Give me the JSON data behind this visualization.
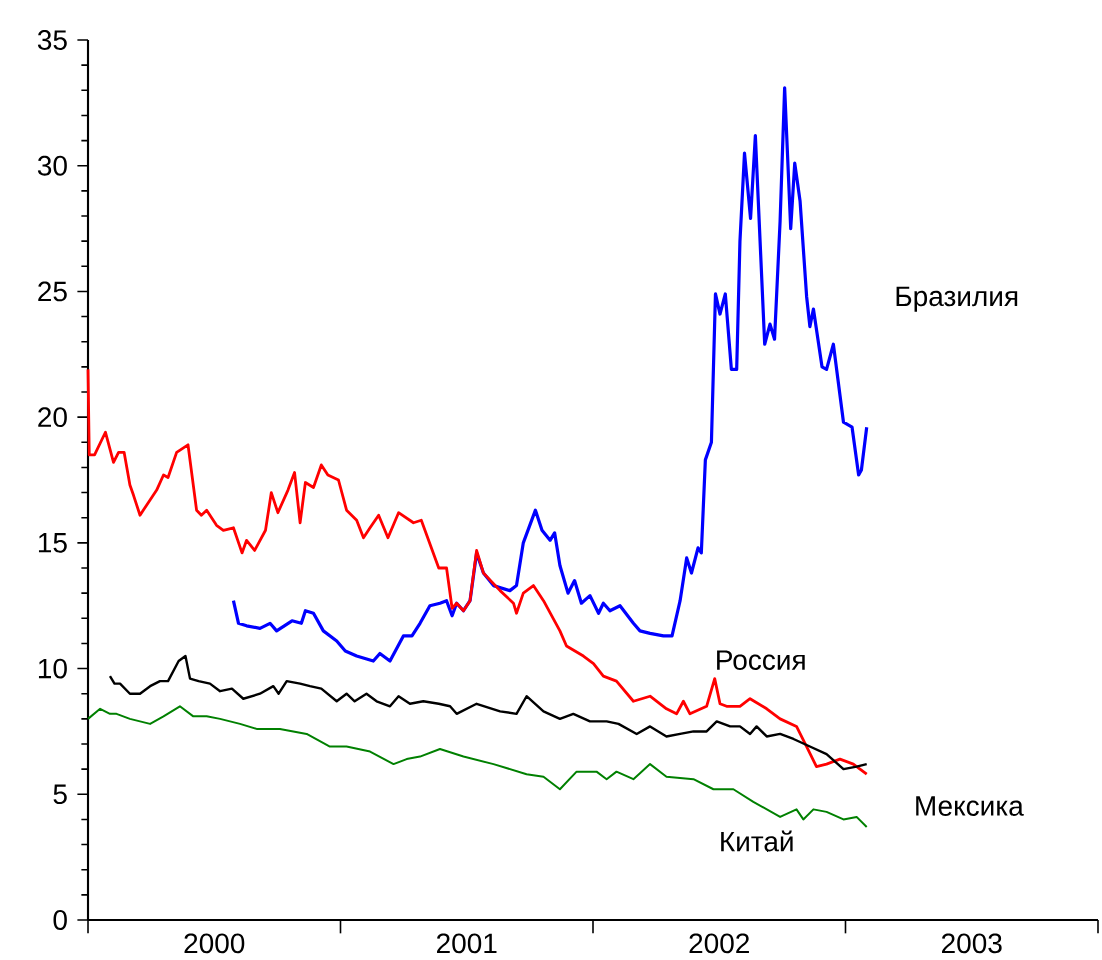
{
  "chart_data": {
    "type": "line",
    "xlim": [
      2000,
      2004
    ],
    "ylim": [
      0,
      35
    ],
    "xticks": [
      {
        "value": 2000,
        "label": null
      },
      {
        "value": 2000.5,
        "label": "2000"
      },
      {
        "value": 2001,
        "label": null
      },
      {
        "value": 2001.5,
        "label": "2001"
      },
      {
        "value": 2002,
        "label": null
      },
      {
        "value": 2002.5,
        "label": "2002"
      },
      {
        "value": 2003,
        "label": null
      },
      {
        "value": 2003.5,
        "label": "2003"
      },
      {
        "value": 2004,
        "label": null
      }
    ],
    "yticks": [
      0,
      5,
      10,
      15,
      20,
      25,
      30,
      35
    ],
    "grid": false,
    "legend": false,
    "marker": "none",
    "line_style": "solid",
    "series": [
      {
        "name": "Бразилия",
        "color": "#0000ff",
        "x": [
          2000.576,
          2000.596,
          2000.628,
          2000.681,
          2000.721,
          2000.747,
          2000.808,
          2000.845,
          2000.861,
          2000.893,
          2000.932,
          2000.985,
          2001.019,
          2001.064,
          2001.13,
          2001.156,
          2001.196,
          2001.249,
          2001.283,
          2001.315,
          2001.354,
          2001.394,
          2001.42,
          2001.442,
          2001.46,
          2001.487,
          2001.513,
          2001.539,
          2001.566,
          2001.606,
          2001.671,
          2001.697,
          2001.724,
          2001.772,
          2001.798,
          2001.83,
          2001.848,
          2001.869,
          2001.901,
          2001.927,
          2001.954,
          2001.988,
          2002.022,
          2002.041,
          2002.067,
          2002.107,
          2002.16,
          2002.186,
          2002.226,
          2002.279,
          2002.313,
          2002.345,
          2002.371,
          2002.39,
          2002.416,
          2002.429,
          2002.445,
          2002.469,
          2002.485,
          2002.503,
          2002.524,
          2002.548,
          2002.569,
          2002.582,
          2002.6,
          2002.624,
          2002.643,
          2002.68,
          2002.701,
          2002.719,
          2002.741,
          2002.759,
          2002.783,
          2002.799,
          2002.82,
          2002.846,
          2002.859,
          2002.873,
          2002.907,
          2002.925,
          2002.952,
          2002.992,
          2003.026,
          2003.052,
          2003.063,
          2003.084
        ],
        "values": [
          12.7,
          11.8,
          11.7,
          11.6,
          11.8,
          11.5,
          11.9,
          11.8,
          12.3,
          12.2,
          11.5,
          11.1,
          10.7,
          10.5,
          10.3,
          10.6,
          10.3,
          11.3,
          11.3,
          11.8,
          12.5,
          12.6,
          12.7,
          12.1,
          12.6,
          12.3,
          12.7,
          14.6,
          13.8,
          13.3,
          13.1,
          13.3,
          15.0,
          16.3,
          15.5,
          15.1,
          15.4,
          14.1,
          13.0,
          13.5,
          12.6,
          12.9,
          12.2,
          12.6,
          12.3,
          12.5,
          11.8,
          11.5,
          11.4,
          11.3,
          11.3,
          12.7,
          14.4,
          13.8,
          14.8,
          14.6,
          18.3,
          19.0,
          24.9,
          24.1,
          24.9,
          21.9,
          21.9,
          27.0,
          30.5,
          27.9,
          31.2,
          22.9,
          23.7,
          23.1,
          27.8,
          33.1,
          27.5,
          30.1,
          28.6,
          24.8,
          23.6,
          24.3,
          22.0,
          21.9,
          22.9,
          19.8,
          19.6,
          17.7,
          17.9,
          19.6
        ]
      },
      {
        "name": "Россия",
        "color": "#ff0000",
        "x": [
          2000.0,
          2000.005,
          2000.026,
          2000.069,
          2000.101,
          2000.121,
          2000.143,
          2000.166,
          2000.18,
          2000.206,
          2000.232,
          2000.272,
          2000.299,
          2000.317,
          2000.351,
          2000.396,
          2000.43,
          2000.449,
          2000.47,
          2000.509,
          2000.536,
          2000.576,
          2000.61,
          2000.628,
          2000.66,
          2000.703,
          2000.726,
          2000.752,
          2000.792,
          2000.818,
          2000.84,
          2000.861,
          2000.893,
          2000.924,
          2000.95,
          2000.992,
          2001.024,
          2001.064,
          2001.091,
          2001.117,
          2001.151,
          2001.188,
          2001.23,
          2001.289,
          2001.32,
          2001.389,
          2001.42,
          2001.442,
          2001.46,
          2001.487,
          2001.513,
          2001.539,
          2001.566,
          2001.632,
          2001.685,
          2001.697,
          2001.724,
          2001.764,
          2001.804,
          2001.869,
          2001.895,
          2001.962,
          2002.002,
          2002.041,
          2002.093,
          2002.16,
          2002.226,
          2002.291,
          2002.331,
          2002.358,
          2002.384,
          2002.45,
          2002.482,
          2002.503,
          2002.529,
          2002.582,
          2002.622,
          2002.688,
          2002.741,
          2002.806,
          2002.846,
          2002.885,
          2002.925,
          2002.978,
          2003.031,
          2003.084
        ],
        "values": [
          21.9,
          18.5,
          18.5,
          19.4,
          18.2,
          18.6,
          18.6,
          17.3,
          16.9,
          16.1,
          16.5,
          17.1,
          17.7,
          17.6,
          18.6,
          18.9,
          16.3,
          16.1,
          16.3,
          15.7,
          15.5,
          15.6,
          14.6,
          15.1,
          14.7,
          15.5,
          17.0,
          16.2,
          17.1,
          17.8,
          15.8,
          17.4,
          17.2,
          18.1,
          17.7,
          17.5,
          16.3,
          15.9,
          15.2,
          15.6,
          16.1,
          15.2,
          16.2,
          15.8,
          15.9,
          14.0,
          14.0,
          12.4,
          12.6,
          12.3,
          12.7,
          14.7,
          13.8,
          13.1,
          12.6,
          12.2,
          13.0,
          13.3,
          12.7,
          11.5,
          10.9,
          10.5,
          10.2,
          9.7,
          9.5,
          8.7,
          8.9,
          8.4,
          8.2,
          8.7,
          8.2,
          8.5,
          9.6,
          8.6,
          8.5,
          8.5,
          8.8,
          8.4,
          8.0,
          7.7,
          6.9,
          6.1,
          6.2,
          6.4,
          6.2,
          5.8
        ]
      },
      {
        "name": "Мексика",
        "color": "#000000",
        "x": [
          2000.087,
          2000.105,
          2000.127,
          2000.166,
          2000.206,
          2000.246,
          2000.285,
          2000.317,
          2000.359,
          2000.386,
          2000.404,
          2000.438,
          2000.483,
          2000.523,
          2000.57,
          2000.615,
          2000.681,
          2000.734,
          2000.755,
          2000.787,
          2000.84,
          2000.879,
          2000.924,
          2000.985,
          2001.024,
          2001.056,
          2001.103,
          2001.143,
          2001.196,
          2001.23,
          2001.275,
          2001.328,
          2001.389,
          2001.434,
          2001.46,
          2001.539,
          2001.632,
          2001.697,
          2001.737,
          2001.804,
          2001.869,
          2001.922,
          2001.988,
          2002.054,
          2002.101,
          2002.173,
          2002.226,
          2002.291,
          2002.345,
          2002.398,
          2002.45,
          2002.49,
          2002.543,
          2002.582,
          2002.622,
          2002.648,
          2002.688,
          2002.741,
          2002.794,
          2002.859,
          2002.925,
          2002.992,
          2003.044,
          2003.084
        ],
        "values": [
          9.7,
          9.4,
          9.4,
          9.0,
          9.0,
          9.3,
          9.5,
          9.5,
          10.3,
          10.5,
          9.6,
          9.5,
          9.4,
          9.1,
          9.2,
          8.8,
          9.0,
          9.3,
          9.0,
          9.5,
          9.4,
          9.3,
          9.2,
          8.7,
          9.0,
          8.7,
          9.0,
          8.7,
          8.5,
          8.9,
          8.6,
          8.7,
          8.6,
          8.5,
          8.2,
          8.6,
          8.3,
          8.2,
          8.9,
          8.3,
          8.0,
          8.2,
          7.9,
          7.9,
          7.8,
          7.4,
          7.7,
          7.3,
          7.4,
          7.5,
          7.5,
          7.9,
          7.7,
          7.7,
          7.4,
          7.7,
          7.3,
          7.4,
          7.2,
          6.9,
          6.6,
          6.0,
          6.1,
          6.2
        ]
      },
      {
        "name": "Китай",
        "color": "#008000",
        "x": [
          2000.0,
          2000.048,
          2000.087,
          2000.113,
          2000.166,
          2000.246,
          2000.299,
          2000.364,
          2000.417,
          2000.47,
          2000.523,
          2000.602,
          2000.668,
          2000.76,
          2000.866,
          2000.958,
          2001.024,
          2001.117,
          2001.21,
          2001.262,
          2001.315,
          2001.394,
          2001.487,
          2001.606,
          2001.737,
          2001.804,
          2001.869,
          2001.935,
          2002.014,
          2002.054,
          2002.093,
          2002.16,
          2002.226,
          2002.291,
          2002.398,
          2002.477,
          2002.556,
          2002.635,
          2002.741,
          2002.806,
          2002.833,
          2002.873,
          2002.925,
          2002.992,
          2003.044,
          2003.084
        ],
        "values": [
          8.0,
          8.4,
          8.2,
          8.2,
          8.0,
          7.8,
          8.1,
          8.5,
          8.1,
          8.1,
          8.0,
          7.8,
          7.6,
          7.6,
          7.4,
          6.9,
          6.9,
          6.7,
          6.2,
          6.4,
          6.5,
          6.8,
          6.5,
          6.2,
          5.8,
          5.7,
          5.2,
          5.9,
          5.9,
          5.6,
          5.9,
          5.6,
          6.2,
          5.7,
          5.6,
          5.2,
          5.2,
          4.7,
          4.1,
          4.4,
          4.0,
          4.4,
          4.3,
          4.0,
          4.1,
          3.7
        ]
      }
    ]
  }
}
